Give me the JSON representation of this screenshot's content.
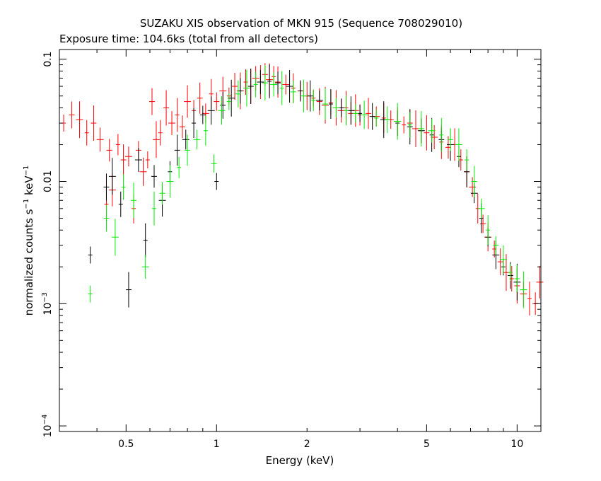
{
  "chart_data": {
    "type": "scatter",
    "title": "SUZAKU XIS observation of MKN 915 (Sequence 708029010)",
    "subtitle": "Exposure time: 104.6ks (total from all detectors)",
    "xlabel": "Energy (keV)",
    "ylabel": {
      "prefix": "normalized counts s",
      "exp1": "−1",
      "mid": " keV",
      "exp2": "−1"
    },
    "xscale": "log",
    "yscale": "log",
    "xlim": [
      0.3,
      12.0
    ],
    "ylim": [
      9e-05,
      0.12
    ],
    "xticks": [
      {
        "v": 0.5,
        "label": "0.5"
      },
      {
        "v": 1,
        "label": "1"
      },
      {
        "v": 2,
        "label": "2"
      },
      {
        "v": 5,
        "label": "5"
      },
      {
        "v": 10,
        "label": "10"
      }
    ],
    "yticks": [
      {
        "v": 0.1,
        "label": "0.1"
      },
      {
        "v": 0.01,
        "label": "0.01"
      },
      {
        "v": 0.001,
        "base": "10",
        "exp": "−3"
      },
      {
        "v": 0.0001,
        "base": "10",
        "exp": "−4"
      }
    ],
    "series": [
      {
        "color": "#ff0000",
        "points": [
          [
            0.31,
            0.03
          ],
          [
            0.33,
            0.035
          ],
          [
            0.35,
            0.032
          ],
          [
            0.37,
            0.025
          ],
          [
            0.39,
            0.03
          ],
          [
            0.41,
            0.022
          ],
          [
            0.43,
            0.0065
          ],
          [
            0.44,
            0.018
          ],
          [
            0.45,
            0.0085
          ],
          [
            0.47,
            0.02
          ],
          [
            0.49,
            0.015
          ],
          [
            0.51,
            0.016
          ],
          [
            0.53,
            0.006
          ],
          [
            0.55,
            0.018
          ],
          [
            0.57,
            0.012
          ],
          [
            0.59,
            0.015
          ],
          [
            0.61,
            0.045
          ],
          [
            0.63,
            0.022
          ],
          [
            0.65,
            0.025
          ],
          [
            0.68,
            0.04
          ],
          [
            0.71,
            0.03
          ],
          [
            0.74,
            0.035
          ],
          [
            0.77,
            0.028
          ],
          [
            0.8,
            0.045
          ],
          [
            0.84,
            0.038
          ],
          [
            0.88,
            0.048
          ],
          [
            0.92,
            0.036
          ],
          [
            0.96,
            0.052
          ],
          [
            1.0,
            0.045
          ],
          [
            1.05,
            0.055
          ],
          [
            1.1,
            0.05
          ],
          [
            1.15,
            0.06
          ],
          [
            1.2,
            0.055
          ],
          [
            1.25,
            0.065
          ],
          [
            1.3,
            0.06
          ],
          [
            1.35,
            0.07
          ],
          [
            1.4,
            0.065
          ],
          [
            1.45,
            0.075
          ],
          [
            1.5,
            0.068
          ],
          [
            1.55,
            0.072
          ],
          [
            1.6,
            0.065
          ],
          [
            1.7,
            0.062
          ],
          [
            1.8,
            0.058
          ],
          [
            1.9,
            0.055
          ],
          [
            2.0,
            0.05
          ],
          [
            2.1,
            0.048
          ],
          [
            2.2,
            0.045
          ],
          [
            2.3,
            0.042
          ],
          [
            2.4,
            0.044
          ],
          [
            2.5,
            0.04
          ],
          [
            2.6,
            0.038
          ],
          [
            2.7,
            0.04
          ],
          [
            2.8,
            0.036
          ],
          [
            2.9,
            0.038
          ],
          [
            3.0,
            0.035
          ],
          [
            3.2,
            0.036
          ],
          [
            3.4,
            0.034
          ],
          [
            3.6,
            0.033
          ],
          [
            3.8,
            0.032
          ],
          [
            4.0,
            0.031
          ],
          [
            4.2,
            0.029
          ],
          [
            4.4,
            0.03
          ],
          [
            4.6,
            0.027
          ],
          [
            4.8,
            0.026
          ],
          [
            5.0,
            0.025
          ],
          [
            5.3,
            0.023
          ],
          [
            5.6,
            0.021
          ],
          [
            5.9,
            0.019
          ],
          [
            6.2,
            0.02
          ],
          [
            6.5,
            0.015
          ],
          [
            6.8,
            0.012
          ],
          [
            7.1,
            0.009
          ],
          [
            7.4,
            0.006
          ],
          [
            7.7,
            0.0045
          ],
          [
            8.0,
            0.0035
          ],
          [
            8.4,
            0.0028
          ],
          [
            8.8,
            0.0022
          ],
          [
            9.2,
            0.0018
          ],
          [
            9.6,
            0.0016
          ],
          [
            10.0,
            0.0014
          ],
          [
            10.5,
            0.0012
          ],
          [
            11.0,
            0.0011
          ],
          [
            11.5,
            0.001
          ],
          [
            11.9,
            0.0015
          ]
        ]
      },
      {
        "color": "#000000",
        "points": [
          [
            0.38,
            0.0025
          ],
          [
            0.43,
            0.009
          ],
          [
            0.45,
            0.011
          ],
          [
            0.48,
            0.0065
          ],
          [
            0.51,
            0.0013
          ],
          [
            0.55,
            0.015
          ],
          [
            0.58,
            0.0033
          ],
          [
            0.62,
            0.011
          ],
          [
            0.66,
            0.007
          ],
          [
            0.7,
            0.012
          ],
          [
            0.74,
            0.018
          ],
          [
            0.79,
            0.022
          ],
          [
            0.84,
            0.03
          ],
          [
            0.9,
            0.035
          ],
          [
            0.96,
            0.038
          ],
          [
            1.0,
            0.01
          ],
          [
            1.05,
            0.042
          ],
          [
            1.12,
            0.048
          ],
          [
            1.2,
            0.055
          ],
          [
            1.3,
            0.06
          ],
          [
            1.4,
            0.065
          ],
          [
            1.5,
            0.066
          ],
          [
            1.6,
            0.064
          ],
          [
            1.75,
            0.06
          ],
          [
            1.9,
            0.055
          ],
          [
            2.05,
            0.05
          ],
          [
            2.2,
            0.046
          ],
          [
            2.4,
            0.043
          ],
          [
            2.6,
            0.04
          ],
          [
            2.8,
            0.038
          ],
          [
            3.0,
            0.036
          ],
          [
            3.3,
            0.034
          ],
          [
            3.6,
            0.032
          ],
          [
            4.0,
            0.03
          ],
          [
            4.4,
            0.028
          ],
          [
            4.8,
            0.026
          ],
          [
            5.2,
            0.024
          ],
          [
            5.6,
            0.022
          ],
          [
            6.0,
            0.02
          ],
          [
            6.4,
            0.016
          ],
          [
            6.8,
            0.012
          ],
          [
            7.2,
            0.008
          ],
          [
            7.6,
            0.005
          ],
          [
            8.0,
            0.0035
          ],
          [
            8.5,
            0.0025
          ],
          [
            9.0,
            0.002
          ],
          [
            9.5,
            0.0017
          ],
          [
            10.0,
            0.0015
          ]
        ]
      },
      {
        "color": "#00ee00",
        "points": [
          [
            0.38,
            0.0012
          ],
          [
            0.43,
            0.005
          ],
          [
            0.46,
            0.0035
          ],
          [
            0.49,
            0.009
          ],
          [
            0.53,
            0.007
          ],
          [
            0.58,
            0.002
          ],
          [
            0.62,
            0.006
          ],
          [
            0.66,
            0.008
          ],
          [
            0.7,
            0.01
          ],
          [
            0.75,
            0.013
          ],
          [
            0.8,
            0.018
          ],
          [
            0.86,
            0.022
          ],
          [
            0.92,
            0.026
          ],
          [
            0.98,
            0.014
          ],
          [
            1.04,
            0.038
          ],
          [
            1.1,
            0.045
          ],
          [
            1.18,
            0.052
          ],
          [
            1.26,
            0.058
          ],
          [
            1.35,
            0.062
          ],
          [
            1.45,
            0.064
          ],
          [
            1.55,
            0.062
          ],
          [
            1.65,
            0.058
          ],
          [
            1.8,
            0.054
          ],
          [
            1.95,
            0.05
          ],
          [
            2.1,
            0.046
          ],
          [
            2.3,
            0.043
          ],
          [
            2.5,
            0.04
          ],
          [
            2.7,
            0.038
          ],
          [
            2.9,
            0.036
          ],
          [
            3.1,
            0.035
          ],
          [
            3.4,
            0.033
          ],
          [
            3.7,
            0.032
          ],
          [
            4.0,
            0.031
          ],
          [
            4.4,
            0.029
          ],
          [
            4.8,
            0.027
          ],
          [
            5.2,
            0.026
          ],
          [
            5.6,
            0.024
          ],
          [
            6.0,
            0.022
          ],
          [
            6.4,
            0.02
          ],
          [
            6.8,
            0.015
          ],
          [
            7.2,
            0.01
          ],
          [
            7.6,
            0.006
          ],
          [
            8.0,
            0.004
          ],
          [
            8.5,
            0.003
          ],
          [
            9.0,
            0.0023
          ],
          [
            9.5,
            0.0018
          ],
          [
            10.0,
            0.0016
          ],
          [
            10.5,
            0.0013
          ]
        ]
      }
    ]
  }
}
